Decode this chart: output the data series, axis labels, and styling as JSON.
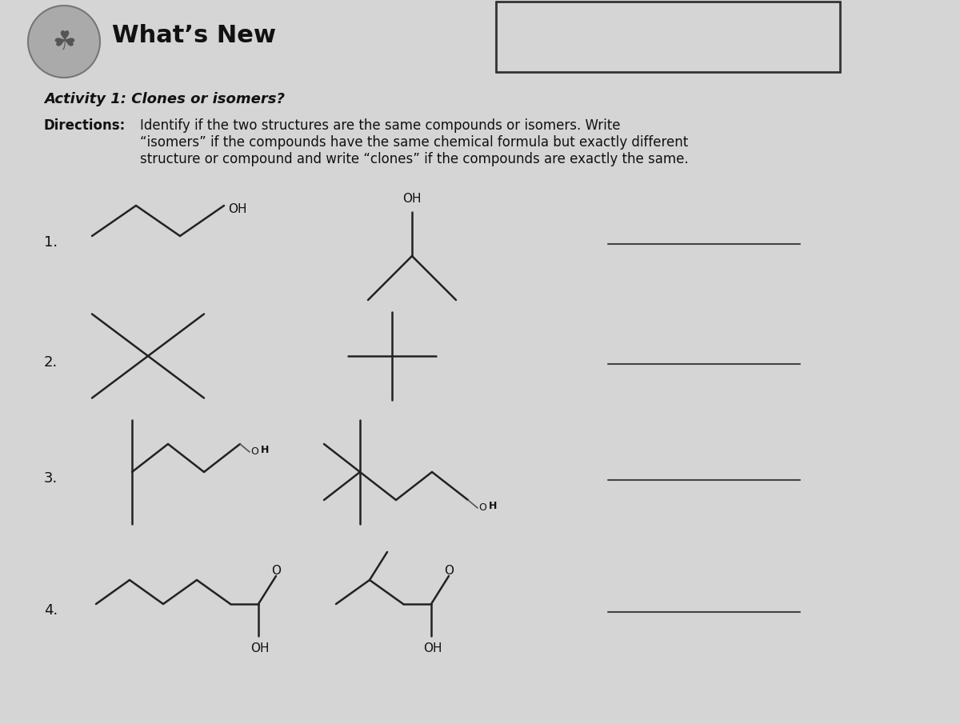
{
  "background_color": "#c8c8c8",
  "paper_color": "#d5d5d5",
  "title": "What’s New",
  "title_fontsize": 20,
  "activity_title": "Activity 1: Clones or isomers?",
  "directions_bold": "Directions:",
  "directions_text": "Identify if the two structures are the same compounds or isomers. Write\n“isomers” if the compounds have the same chemical formula but exactly different\nstructure or compound and write “clones” if the compounds are exactly the same.",
  "line_color": "#222222",
  "text_color": "#111111",
  "answer_line_color": "#444444"
}
